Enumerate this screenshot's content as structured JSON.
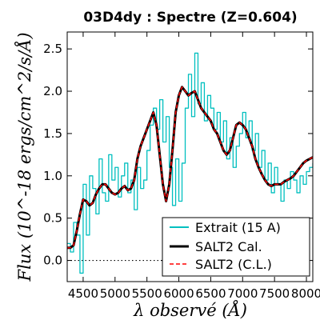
{
  "chart_data": {
    "type": "line",
    "title": "03D4dy : Spectre (Z=0.604)",
    "xlabel": "λ observé (Å)",
    "ylabel": "Flux (10^-18 ergs/cm^2/s/Å)",
    "xlim": [
      4250,
      8100
    ],
    "ylim": [
      -0.25,
      2.7
    ],
    "xticks": [
      4500,
      5000,
      5500,
      6000,
      6500,
      7000,
      7500,
      8000
    ],
    "xtick_labels": [
      "4500",
      "5000",
      "5500",
      "6000",
      "6500",
      "7000",
      "7500",
      "8000"
    ],
    "yticks": [
      0.0,
      0.5,
      1.0,
      1.5,
      2.0,
      2.5
    ],
    "ytick_labels": [
      "0.0",
      "0.5",
      "1.0",
      "1.5",
      "2.0",
      "2.5"
    ],
    "grid": false,
    "legend_position": "lower-right",
    "zero_line": {
      "y": 0.0,
      "style": "dotted",
      "color": "#000000"
    },
    "legend": [
      "Extrait (15 A)",
      "SALT2 Cal.",
      "SALT2 (C.L.)"
    ],
    "series": [
      {
        "name": "Extrait (15 A)",
        "color": "#00bfbf",
        "style": "steps",
        "x": [
          4250,
          4300,
          4350,
          4400,
          4450,
          4500,
          4550,
          4600,
          4650,
          4700,
          4750,
          4800,
          4850,
          4900,
          4950,
          5000,
          5050,
          5100,
          5150,
          5200,
          5250,
          5300,
          5350,
          5400,
          5450,
          5500,
          5550,
          5600,
          5650,
          5700,
          5750,
          5800,
          5850,
          5900,
          5950,
          6000,
          6050,
          6100,
          6150,
          6200,
          6250,
          6300,
          6350,
          6400,
          6450,
          6500,
          6550,
          6600,
          6650,
          6700,
          6750,
          6800,
          6850,
          6900,
          6950,
          7000,
          7050,
          7100,
          7150,
          7200,
          7250,
          7300,
          7350,
          7400,
          7450,
          7500,
          7550,
          7600,
          7650,
          7700,
          7750,
          7800,
          7850,
          7900,
          7950,
          8000,
          8050,
          8100
        ],
        "y": [
          0.2,
          0.1,
          0.45,
          0.3,
          -0.15,
          0.9,
          0.3,
          1.0,
          0.85,
          0.55,
          1.2,
          0.8,
          0.7,
          1.25,
          0.95,
          1.1,
          0.75,
          1.0,
          1.15,
          0.8,
          0.95,
          0.6,
          1.1,
          0.85,
          0.95,
          1.3,
          1.6,
          1.8,
          1.55,
          1.9,
          1.4,
          1.7,
          1.1,
          0.65,
          1.2,
          0.7,
          1.15,
          1.8,
          2.2,
          1.7,
          2.45,
          1.85,
          2.1,
          1.65,
          1.95,
          1.8,
          1.55,
          1.75,
          1.4,
          1.65,
          1.2,
          1.45,
          1.1,
          1.35,
          1.5,
          1.75,
          1.45,
          1.65,
          1.3,
          1.5,
          1.1,
          1.3,
          0.95,
          1.15,
          0.8,
          1.1,
          0.9,
          0.7,
          0.95,
          0.85,
          1.05,
          0.95,
          0.8,
          1.0,
          0.9,
          1.05,
          1.1,
          1.15
        ]
      },
      {
        "name": "SALT2 Cal.",
        "color": "#000000",
        "x": [
          4250,
          4300,
          4350,
          4400,
          4450,
          4500,
          4550,
          4600,
          4650,
          4700,
          4750,
          4800,
          4850,
          4900,
          4950,
          5000,
          5050,
          5100,
          5150,
          5200,
          5250,
          5300,
          5350,
          5400,
          5450,
          5500,
          5550,
          5600,
          5650,
          5700,
          5750,
          5800,
          5850,
          5900,
          5950,
          6000,
          6050,
          6100,
          6150,
          6200,
          6250,
          6300,
          6350,
          6400,
          6450,
          6500,
          6550,
          6600,
          6650,
          6700,
          6750,
          6800,
          6850,
          6900,
          6950,
          7000,
          7050,
          7100,
          7150,
          7200,
          7250,
          7300,
          7350,
          7400,
          7450,
          7500,
          7550,
          7600,
          7650,
          7700,
          7750,
          7800,
          7850,
          7900,
          7950,
          8000,
          8050,
          8100
        ],
        "y": [
          0.15,
          0.15,
          0.18,
          0.35,
          0.55,
          0.72,
          0.7,
          0.65,
          0.68,
          0.78,
          0.85,
          0.9,
          0.9,
          0.85,
          0.8,
          0.78,
          0.8,
          0.85,
          0.88,
          0.83,
          0.85,
          0.95,
          1.2,
          1.35,
          1.45,
          1.55,
          1.65,
          1.75,
          1.6,
          1.25,
          0.9,
          0.7,
          0.9,
          1.3,
          1.75,
          1.95,
          2.05,
          2.0,
          1.95,
          1.98,
          2.0,
          1.9,
          1.8,
          1.75,
          1.7,
          1.65,
          1.55,
          1.5,
          1.4,
          1.3,
          1.25,
          1.3,
          1.45,
          1.6,
          1.63,
          1.6,
          1.55,
          1.45,
          1.35,
          1.2,
          1.1,
          1.02,
          0.95,
          0.9,
          0.88,
          0.9,
          0.9,
          0.9,
          0.93,
          0.95,
          0.97,
          1.0,
          1.05,
          1.1,
          1.15,
          1.18,
          1.2,
          1.22
        ]
      },
      {
        "name": "SALT2 (C.L.)",
        "color": "#ff0000",
        "style": "dashed",
        "x": [
          4250,
          4300,
          4350,
          4400,
          4450,
          4500,
          4550,
          4600,
          4650,
          4700,
          4750,
          4800,
          4850,
          4900,
          4950,
          5000,
          5050,
          5100,
          5150,
          5200,
          5250,
          5300,
          5350,
          5400,
          5450,
          5500,
          5550,
          5600,
          5650,
          5700,
          5750,
          5800,
          5850,
          5900,
          5950,
          6000,
          6050,
          6100,
          6150,
          6200,
          6250,
          6300,
          6350,
          6400,
          6450,
          6500,
          6550,
          6600,
          6650,
          6700,
          6750,
          6800,
          6850,
          6900,
          6950,
          7000,
          7050,
          7100,
          7150,
          7200,
          7250,
          7300,
          7350,
          7400,
          7450,
          7500,
          7550,
          7600,
          7650,
          7700,
          7750,
          7800,
          7850,
          7900,
          7950,
          8000,
          8050,
          8100
        ],
        "y": [
          0.15,
          0.15,
          0.18,
          0.35,
          0.55,
          0.72,
          0.7,
          0.65,
          0.68,
          0.78,
          0.85,
          0.9,
          0.9,
          0.85,
          0.8,
          0.78,
          0.8,
          0.85,
          0.88,
          0.83,
          0.85,
          0.95,
          1.2,
          1.35,
          1.45,
          1.55,
          1.65,
          1.75,
          1.6,
          1.25,
          0.9,
          0.7,
          0.9,
          1.3,
          1.75,
          1.95,
          2.05,
          2.0,
          1.95,
          1.98,
          2.0,
          1.9,
          1.8,
          1.75,
          1.7,
          1.65,
          1.55,
          1.5,
          1.4,
          1.3,
          1.25,
          1.3,
          1.45,
          1.6,
          1.63,
          1.6,
          1.55,
          1.45,
          1.35,
          1.2,
          1.1,
          1.02,
          0.95,
          0.9,
          0.88,
          0.9,
          0.9,
          0.9,
          0.93,
          0.95,
          0.97,
          1.0,
          1.05,
          1.1,
          1.15,
          1.18,
          1.2,
          1.22
        ]
      }
    ]
  }
}
